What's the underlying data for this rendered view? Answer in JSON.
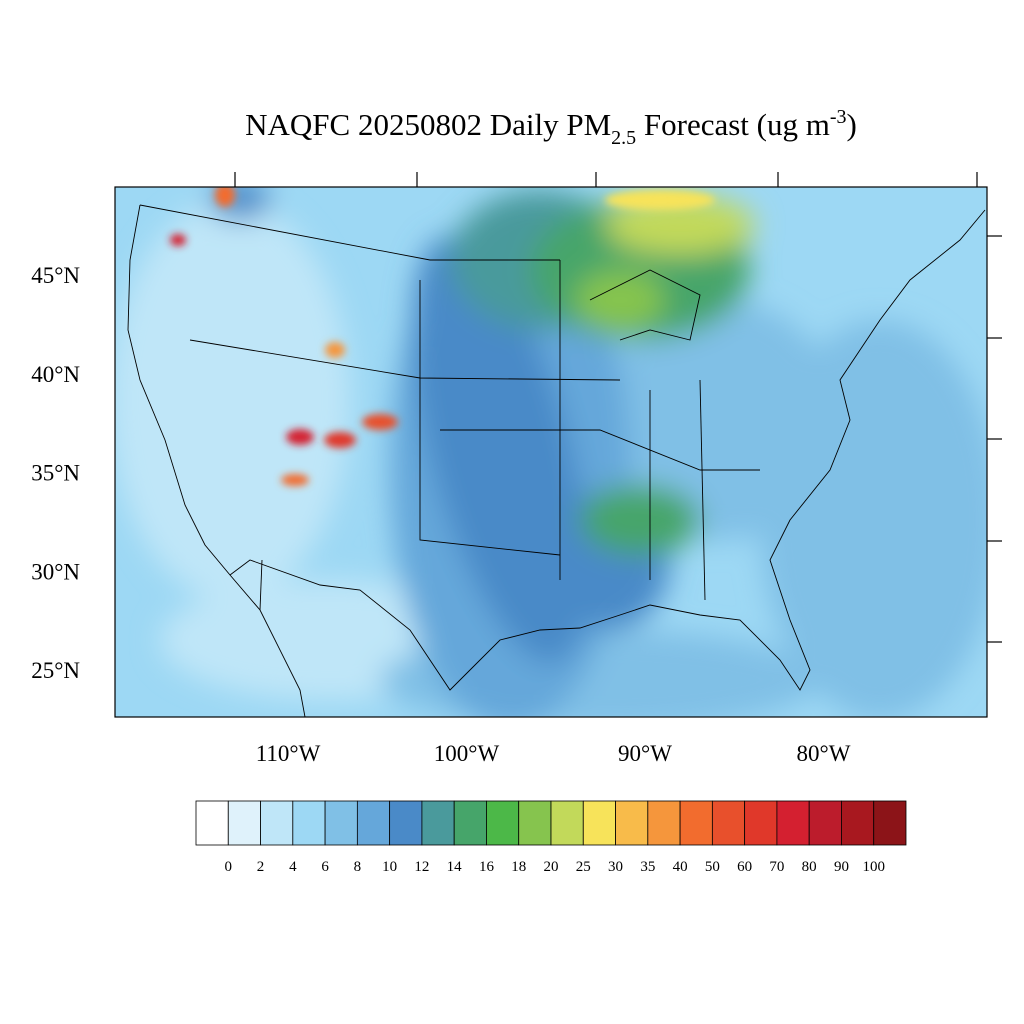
{
  "title": {
    "main": "NAQFC 20250802 Daily PM",
    "subscript": "2.5",
    "rest": " Forecast (ug m",
    "superscript": "-3",
    "close": ")"
  },
  "lat_labels": [
    "45°N",
    "40°N",
    "35°N",
    "30°N",
    "25°N"
  ],
  "lon_labels": [
    "110°W",
    "100°W",
    "90°W",
    "80°W"
  ],
  "colorbar": {
    "levels": [
      0,
      2,
      4,
      6,
      8,
      10,
      12,
      14,
      16,
      18,
      20,
      25,
      30,
      35,
      40,
      50,
      60,
      70,
      80,
      90,
      100
    ],
    "colors": [
      "#ffffff",
      "#dff2fb",
      "#bfe6f8",
      "#9dd8f4",
      "#80c0e6",
      "#65a7da",
      "#4a8ac8",
      "#4a9a9c",
      "#46a56a",
      "#4cb848",
      "#86c44e",
      "#c2d95a",
      "#f7e35a",
      "#f8bb4a",
      "#f5963c",
      "#f26c2e",
      "#e8502c",
      "#e0382a",
      "#d42030",
      "#bc1c2c",
      "#a8181f",
      "#8c1418"
    ]
  }
}
